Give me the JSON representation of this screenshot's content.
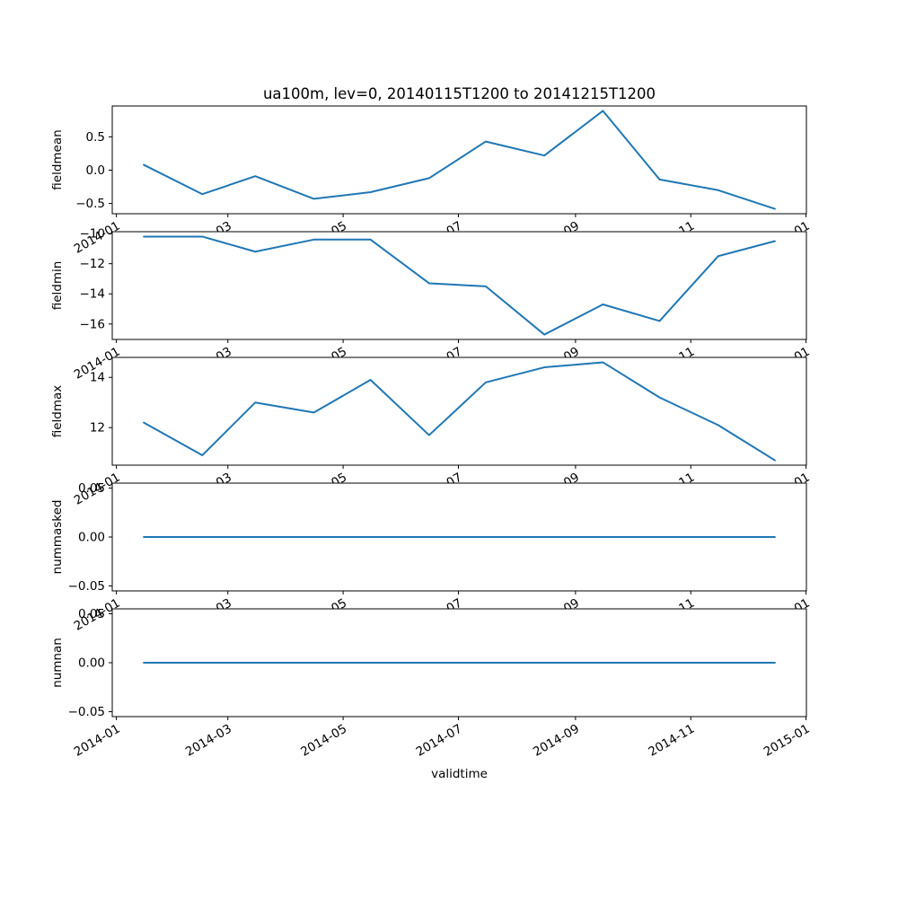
{
  "figure": {
    "title": "ua100m, lev=0, 20140115T1200 to 20141215T1200",
    "xlabel": "validtime",
    "line_color": "#1f77b4",
    "axes_color": "#000000",
    "background_color": "#ffffff"
  },
  "chart_data": {
    "type": "line",
    "title": "ua100m, lev=0, 20140115T1200 to 20141215T1200",
    "xlabel": "validtime",
    "legend": "none",
    "grid": false,
    "x": [
      "2014-01-15T12:00",
      "2014-02-15T12:00",
      "2014-03-15T12:00",
      "2014-04-15T12:00",
      "2014-05-15T12:00",
      "2014-06-15T12:00",
      "2014-07-15T12:00",
      "2014-08-15T12:00",
      "2014-09-15T12:00",
      "2014-10-15T12:00",
      "2014-11-15T12:00",
      "2014-12-15T12:00"
    ],
    "xtick_labels": [
      "2014-01",
      "2014-03",
      "2014-05",
      "2014-07",
      "2014-09",
      "2014-11",
      "2015-01"
    ],
    "subplots": [
      {
        "ylabel": "fieldmean",
        "values": [
          0.08,
          -0.36,
          -0.09,
          -0.43,
          -0.33,
          -0.12,
          0.43,
          0.22,
          0.89,
          -0.14,
          -0.3,
          -0.58
        ],
        "ytick_values": [
          0.5,
          0.0,
          -0.5
        ],
        "ytick_labels": [
          "0.5",
          "0.0",
          "−0.5"
        ]
      },
      {
        "ylabel": "fieldmin",
        "values": [
          -10.2,
          -10.2,
          -11.2,
          -10.4,
          -10.4,
          -13.3,
          -13.5,
          -16.7,
          -14.7,
          -15.8,
          -11.5,
          -10.5
        ],
        "ytick_values": [
          -10,
          -12,
          -14,
          -16
        ],
        "ytick_labels": [
          "−10",
          "−12",
          "−14",
          "−16"
        ]
      },
      {
        "ylabel": "fieldmax",
        "values": [
          12.2,
          10.9,
          13.0,
          12.6,
          13.9,
          11.7,
          13.8,
          14.4,
          14.6,
          13.2,
          12.1,
          10.7
        ],
        "ytick_values": [
          14,
          12
        ],
        "ytick_labels": [
          "14",
          "12"
        ]
      },
      {
        "ylabel": "nummasked",
        "values": [
          0,
          0,
          0,
          0,
          0,
          0,
          0,
          0,
          0,
          0,
          0,
          0
        ],
        "ytick_values": [
          0.05,
          0.0,
          -0.05
        ],
        "ytick_labels": [
          "0.05",
          "0.00",
          "−0.05"
        ]
      },
      {
        "ylabel": "numnan",
        "values": [
          0,
          0,
          0,
          0,
          0,
          0,
          0,
          0,
          0,
          0,
          0,
          0
        ],
        "ytick_values": [
          0.05,
          0.0,
          -0.05
        ],
        "ytick_labels": [
          "0.05",
          "0.00",
          "−0.05"
        ]
      }
    ]
  }
}
